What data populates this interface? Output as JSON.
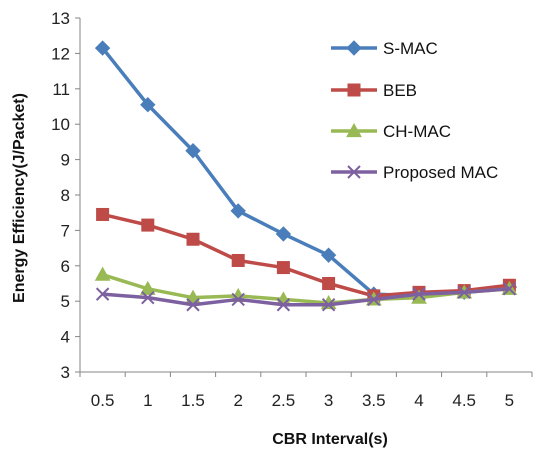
{
  "chart_data": {
    "type": "line",
    "title": "",
    "xlabel": "CBR Interval(s)",
    "ylabel": "Energy Efficiency(J/Packet)",
    "categories": [
      "0.5",
      "1",
      "1.5",
      "2",
      "2.5",
      "3",
      "3.5",
      "4",
      "4.5",
      "5"
    ],
    "ylim": [
      3,
      13
    ],
    "yticks": [
      "3",
      "4",
      "5",
      "6",
      "7",
      "8",
      "9",
      "10",
      "11",
      "12",
      "13"
    ],
    "grid": false,
    "legend": "right",
    "series": [
      {
        "name": "S-MAC",
        "color": "#4a7ebb",
        "marker": "diamond",
        "values": [
          12.15,
          10.55,
          9.25,
          7.55,
          6.9,
          6.3,
          5.2,
          5.15,
          5.25,
          5.4
        ]
      },
      {
        "name": "BEB",
        "color": "#be4b48",
        "marker": "square",
        "values": [
          7.45,
          7.15,
          6.75,
          6.15,
          5.95,
          5.5,
          5.15,
          5.25,
          5.3,
          5.45
        ]
      },
      {
        "name": "CH-MAC",
        "color": "#98b954",
        "marker": "triangle",
        "values": [
          5.75,
          5.35,
          5.1,
          5.15,
          5.05,
          4.95,
          5.05,
          5.1,
          5.25,
          5.35
        ]
      },
      {
        "name": "Proposed MAC",
        "color": "#7d60a0",
        "marker": "x",
        "values": [
          5.2,
          5.1,
          4.9,
          5.05,
          4.9,
          4.9,
          5.05,
          5.2,
          5.25,
          5.35
        ]
      }
    ]
  }
}
